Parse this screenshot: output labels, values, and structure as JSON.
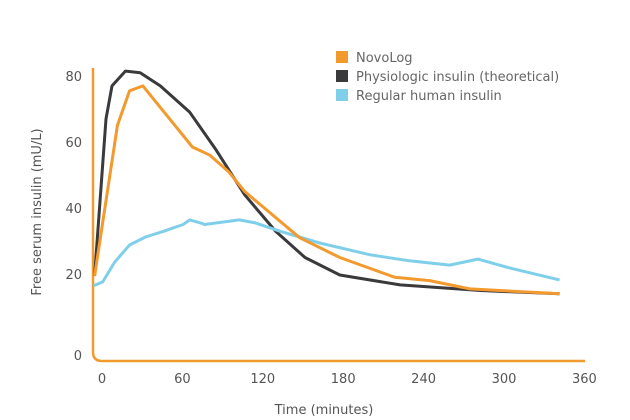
{
  "chart_data": {
    "type": "line",
    "title": "",
    "xlabel": "Time (minutes)",
    "ylabel": "Free serum insulin (mU/L)",
    "xlim": [
      -8,
      360
    ],
    "ylim": [
      0,
      85
    ],
    "xticks": [
      0,
      60,
      120,
      180,
      240,
      300,
      360
    ],
    "yticks": [
      0,
      20,
      40,
      60,
      80
    ],
    "grid": false,
    "legend_position": "top-right",
    "series": [
      {
        "name": "NovoLog",
        "color": "#f39a2e",
        "x": [
          -7,
          10,
          19,
          29,
          66,
          79,
          93,
          105,
          146,
          176,
          217,
          243,
          273,
          340
        ],
        "y": [
          19.4,
          65,
          75.5,
          77,
          58.5,
          56,
          51,
          45,
          31,
          25,
          19,
          18,
          15.5,
          14
        ]
      },
      {
        "name": "Physiologic insulin (theoretical)",
        "color": "#3a3a3c",
        "x": [
          -7,
          -3,
          1.5,
          6,
          16,
          27,
          42,
          64,
          83,
          105,
          128,
          150,
          176,
          221,
          281,
          340
        ],
        "y": [
          19.4,
          42,
          67,
          77,
          81.5,
          81,
          77,
          69,
          58,
          44,
          33,
          25,
          19.7,
          16.7,
          15,
          14
        ]
      },
      {
        "name": "Regular human insulin",
        "color": "#7fcfea",
        "x": [
          -8,
          -1,
          8,
          19,
          31,
          45,
          59,
          64,
          72,
          75,
          101,
          113,
          131,
          161,
          199,
          228,
          258,
          279,
          303,
          340
        ],
        "y": [
          16.4,
          17.6,
          23.6,
          28.8,
          31.2,
          33,
          35,
          36.4,
          35.5,
          35,
          36.4,
          35.5,
          33,
          29.4,
          25.8,
          24,
          22.7,
          24.5,
          21.8,
          18.2
        ]
      }
    ],
    "axis_color": "#f39a2e"
  }
}
